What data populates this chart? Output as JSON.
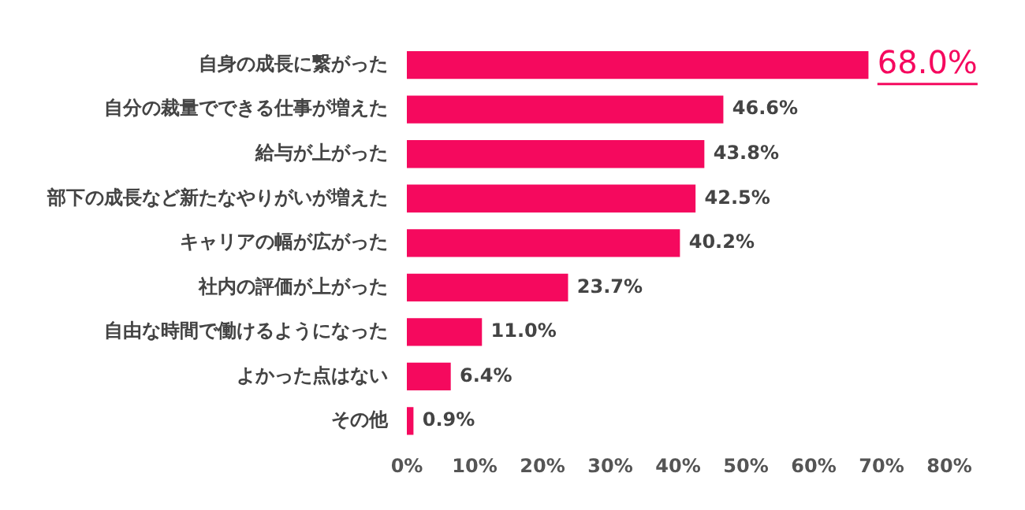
{
  "chart_data": {
    "type": "bar",
    "orientation": "horizontal",
    "categories": [
      "自身の成長に繋がった",
      "自分の裁量でできる仕事が増えた",
      "給与が上がった",
      "部下の成長など新たなやりがいが増えた",
      "キャリアの幅が広がった",
      "社内の評価が上がった",
      "自由な時間で働けるようになった",
      "よかった点はない",
      "その他"
    ],
    "values": [
      68.0,
      46.6,
      43.8,
      42.5,
      40.2,
      23.7,
      11.0,
      6.4,
      0.9
    ],
    "value_labels": [
      "68.0%",
      "46.6%",
      "43.8%",
      "42.5%",
      "40.2%",
      "23.7%",
      "11.0%",
      "6.4%",
      "0.9%"
    ],
    "color": "#f5095e",
    "xlim": [
      0,
      80
    ],
    "xticks": [
      {
        "value": 0,
        "label": "0%"
      },
      {
        "value": 10,
        "label": "10%"
      },
      {
        "value": 20,
        "label": "20%"
      },
      {
        "value": 30,
        "label": "30%"
      },
      {
        "value": 40,
        "label": "40%"
      },
      {
        "value": 50,
        "label": "50%"
      },
      {
        "value": 60,
        "label": "60%"
      },
      {
        "value": 70,
        "label": "70%"
      },
      {
        "value": 80,
        "label": "80%"
      }
    ],
    "grid": false,
    "legend": false
  }
}
